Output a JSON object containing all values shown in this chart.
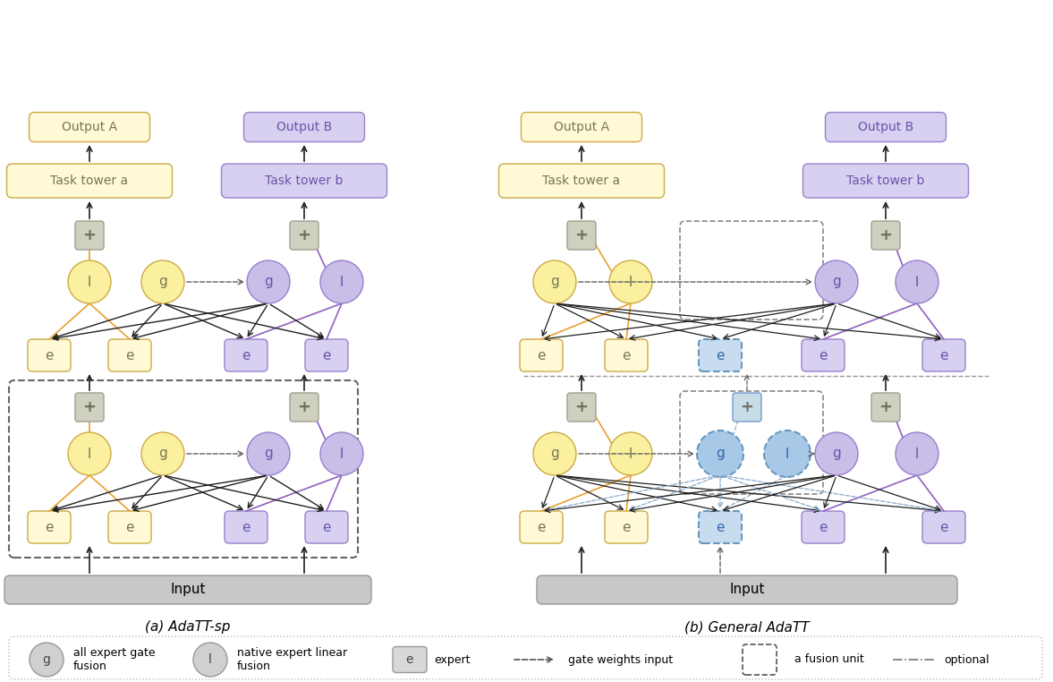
{
  "fig_width": 11.77,
  "fig_height": 7.62,
  "color_yellow_light": "#FFF9D6",
  "color_yellow_med": "#FAF0A0",
  "color_purple_light": "#D8D0F0",
  "color_purple_med": "#C8BEE8",
  "color_blue_light": "#C8DCF0",
  "color_blue_med": "#A8C8E8",
  "color_gray_input": "#C8C8C8",
  "color_orange": "#E8A030",
  "color_purple_arrow": "#9060C0",
  "color_black": "#202020",
  "color_gray_arrow": "#606060",
  "subtitle_a": "(a) AdaTT-sp",
  "subtitle_b": "(b) General AdaTT",
  "legend_g": "all expert gate\nfusion",
  "legend_l": "native expert linear\nfusion",
  "legend_e": "expert",
  "legend_gate": "gate weights input",
  "legend_fusion": "a fusion unit",
  "legend_optional": "optional"
}
